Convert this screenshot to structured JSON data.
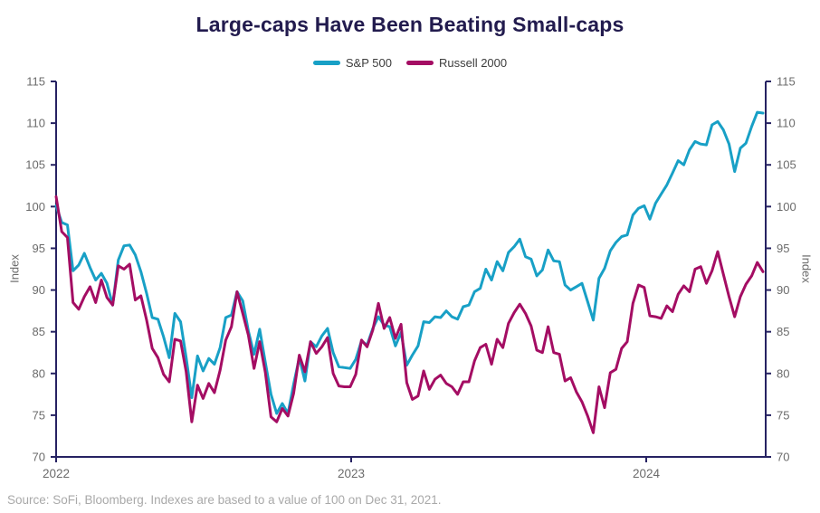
{
  "title": "Large-caps Have Been Beating Small-caps",
  "source_note": "Source: SoFi, Bloomberg. Indexes are based to a value of 100 on Dec 31, 2021.",
  "colors": {
    "sp500": "#18A0C6",
    "russell2000": "#A40D63",
    "axis": "#262262",
    "title": "#221B4E",
    "tick_labels": "#6B6B6B",
    "source": "#A9A9A9"
  },
  "chart_data": {
    "type": "line",
    "title": "Large-caps Have Been Beating Small-caps",
    "xlabel": "",
    "ylabel": "Index",
    "ylabel_right": "Index",
    "ylim": [
      70,
      115
    ],
    "yticks": [
      70,
      75,
      80,
      85,
      90,
      95,
      100,
      105,
      110,
      115
    ],
    "x_tick_years": [
      2022,
      2023,
      2024
    ],
    "x_start_date": "2021-12-31",
    "x_step_days": 7,
    "grid": false,
    "legend_position": "top-center",
    "series": [
      {
        "name": "S&P 500",
        "color": "#18A0C6",
        "values": [
          100.1,
          98.1,
          97.8,
          92.3,
          93.0,
          94.4,
          92.7,
          91.2,
          92.0,
          90.8,
          88.2,
          93.6,
          95.3,
          95.4,
          94.2,
          92.2,
          89.6,
          86.7,
          86.5,
          84.4,
          81.9,
          87.2,
          86.2,
          81.9,
          77.1,
          82.1,
          80.3,
          81.8,
          81.1,
          83.1,
          86.7,
          87.0,
          89.8,
          88.7,
          85.1,
          82.3,
          85.3,
          81.3,
          77.5,
          75.2,
          76.4,
          75.2,
          78.7,
          81.9,
          79.1,
          83.8,
          83.2,
          84.5,
          85.4,
          82.5,
          80.8,
          80.7,
          80.6,
          81.7,
          83.9,
          83.4,
          85.4,
          86.8,
          85.8,
          85.6,
          83.3,
          84.9,
          81.0,
          82.2,
          83.3,
          86.2,
          86.1,
          86.8,
          86.7,
          87.5,
          86.8,
          86.5,
          88.0,
          88.2,
          89.8,
          90.2,
          92.5,
          91.2,
          93.4,
          92.3,
          94.5,
          95.2,
          96.1,
          94.0,
          93.7,
          91.7,
          92.4,
          94.8,
          93.5,
          93.4,
          90.6,
          90.0,
          90.4,
          90.8,
          88.6,
          86.4,
          91.4,
          92.6,
          94.7,
          95.7,
          96.4,
          96.6,
          99.0,
          99.8,
          100.1,
          98.5,
          100.4,
          101.5,
          102.6,
          104.0,
          105.5,
          105.0,
          106.8,
          107.8,
          107.5,
          107.4,
          109.8,
          110.2,
          109.2,
          107.5,
          104.2,
          107.0,
          107.6,
          109.6,
          111.3,
          111.2
        ]
      },
      {
        "name": "Russell 2000",
        "color": "#A40D63",
        "values": [
          101.2,
          97.0,
          96.3,
          88.5,
          87.7,
          89.2,
          90.4,
          88.5,
          91.2,
          89.1,
          88.2,
          92.9,
          92.5,
          93.1,
          88.8,
          89.3,
          86.4,
          83.0,
          81.9,
          79.9,
          79.0,
          84.1,
          83.9,
          80.2,
          74.2,
          78.6,
          77.0,
          78.8,
          77.7,
          80.4,
          84.0,
          85.6,
          89.8,
          87.2,
          84.6,
          80.6,
          83.8,
          80.1,
          74.8,
          74.2,
          75.8,
          74.9,
          77.6,
          82.2,
          80.2,
          83.8,
          82.4,
          83.2,
          84.3,
          80.0,
          78.5,
          78.4,
          78.4,
          79.9,
          84.0,
          83.2,
          85.2,
          88.4,
          85.4,
          86.7,
          84.2,
          85.9,
          78.9,
          76.9,
          77.3,
          80.3,
          78.1,
          79.3,
          79.8,
          78.8,
          78.4,
          77.5,
          79.0,
          79.0,
          81.5,
          83.1,
          83.5,
          81.1,
          84.1,
          83.1,
          86.0,
          87.3,
          88.3,
          87.2,
          85.7,
          82.8,
          82.5,
          85.6,
          82.5,
          82.3,
          79.1,
          79.5,
          77.8,
          76.6,
          74.9,
          72.9,
          78.4,
          75.9,
          80.1,
          80.5,
          83.0,
          83.8,
          88.4,
          90.6,
          90.3,
          86.9,
          86.8,
          86.6,
          88.1,
          87.4,
          89.5,
          90.5,
          89.8,
          92.5,
          92.8,
          90.8,
          92.3,
          94.6,
          91.9,
          89.2,
          86.8,
          89.2,
          90.7,
          91.7,
          93.3,
          92.2
        ]
      }
    ]
  }
}
